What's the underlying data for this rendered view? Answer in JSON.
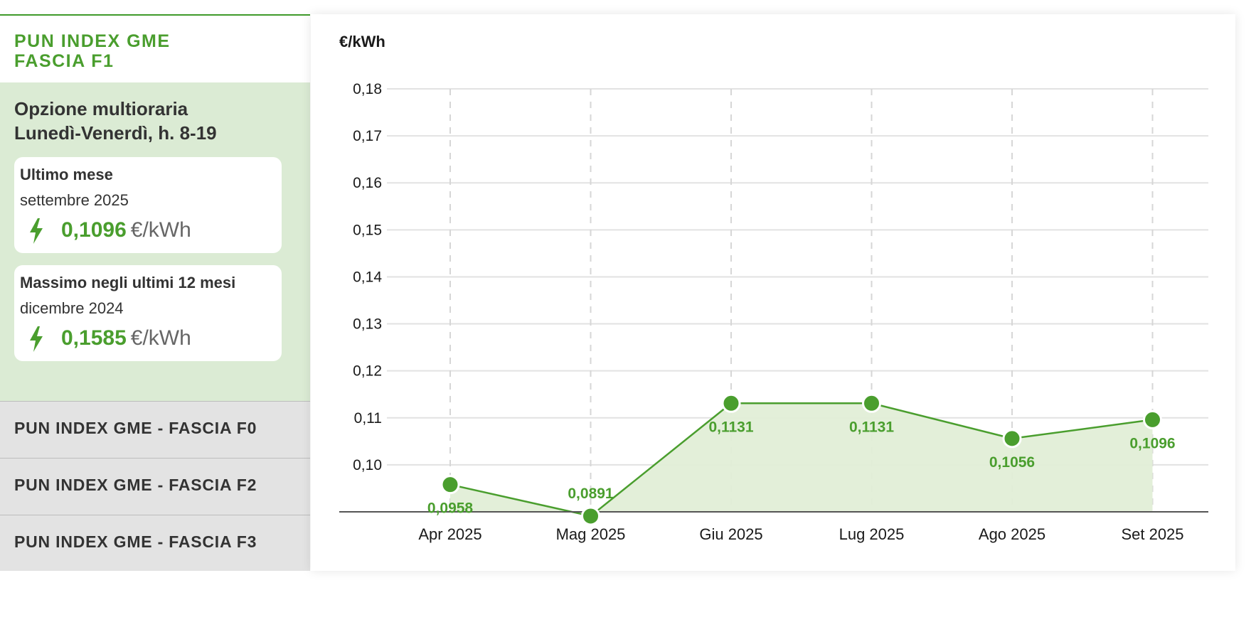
{
  "sidebar": {
    "active": {
      "title_line1": "PUN INDEX GME",
      "title_line2": "FASCIA F1",
      "subtitle_line1": "Opzione multioraria",
      "subtitle_line2": "Lunedì-Venerdì, h. 8-19",
      "cards": [
        {
          "label": "Ultimo mese",
          "date": "settembre 2025",
          "value": "0,1096",
          "unit": "€/kWh",
          "icon": "bolt-icon"
        },
        {
          "label": "Massimo negli ultimi 12 mesi",
          "date": "dicembre 2024",
          "value": "0,1585",
          "unit": "€/kWh",
          "icon": "bolt-icon"
        }
      ]
    },
    "tabs": [
      {
        "label": "PUN INDEX GME - FASCIA F0"
      },
      {
        "label": "PUN INDEX GME - FASCIA F2"
      },
      {
        "label": "PUN INDEX GME - FASCIA F3"
      }
    ]
  },
  "colors": {
    "accent": "#4a9e2e",
    "panel_bg": "#dbebd4",
    "tab_bg": "#e3e3e3",
    "area_fill": "#e1eed7"
  },
  "chart_data": {
    "type": "area",
    "title": "",
    "ylabel": "€/kWh",
    "xlabel": "",
    "categories": [
      "Apr 2025",
      "Mag 2025",
      "Giu 2025",
      "Lug 2025",
      "Ago 2025",
      "Set 2025"
    ],
    "values": [
      0.0958,
      0.0891,
      0.1131,
      0.1131,
      0.1056,
      0.1096
    ],
    "value_labels": [
      "0,0958",
      "0,0891",
      "0,1131",
      "0,1131",
      "0,1056",
      "0,1096"
    ],
    "value_label_position": [
      "below",
      "above",
      "below",
      "below",
      "below",
      "below"
    ],
    "ylim": [
      0.09,
      0.18
    ],
    "yticks": [
      0.1,
      0.11,
      0.12,
      0.13,
      0.14,
      0.15,
      0.16,
      0.17,
      0.18
    ],
    "ytick_labels": [
      "0,10",
      "0,11",
      "0,12",
      "0,13",
      "0,14",
      "0,15",
      "0,16",
      "0,17",
      "0,18"
    ],
    "grid": true,
    "legend": "none"
  }
}
